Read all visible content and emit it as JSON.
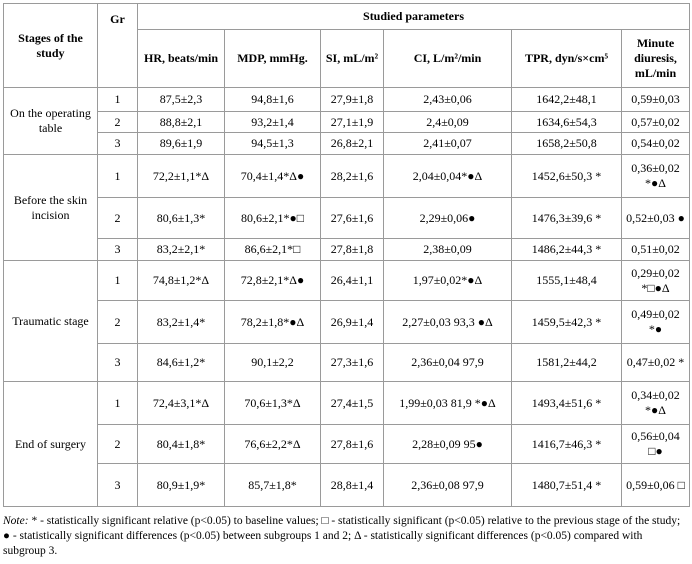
{
  "header": {
    "stages": "Stages of the study",
    "gr": "Gr",
    "studied": "Studied parameters",
    "columns": [
      "HR, beats/min",
      "MDP, mmHg.",
      "SI, mL/m²",
      "CI, L/m²/min",
      "TPR, dyn/s×cm⁵",
      "Minute diuresis, mL/min"
    ]
  },
  "groups": [
    {
      "stage": "On the operating table",
      "rows": [
        {
          "gr": "1",
          "values": [
            "87,5±2,3",
            "94,8±1,6",
            "27,9±1,8",
            "2,43±0,06",
            "1642,2±48,1",
            "0,59±0,03"
          ]
        },
        {
          "gr": "2",
          "values": [
            "88,8±2,1",
            "93,2±1,4",
            "27,1±1,9",
            "2,4±0,09",
            "1634,6±54,3",
            "0,57±0,02"
          ]
        },
        {
          "gr": "3",
          "values": [
            "89,6±1,9",
            "94,5±1,3",
            "26,8±2,1",
            "2,41±0,07",
            "1658,2±50,8",
            "0,54±0,02"
          ]
        }
      ]
    },
    {
      "stage": "Before the skin incision",
      "rows": [
        {
          "gr": "1",
          "values": [
            "72,2±1,1*Δ",
            "70,4±1,4*Δ●",
            "28,2±1,6",
            "2,04±0,04*●Δ",
            "1452,6±50,3 *",
            "0,36±0,02 *●Δ"
          ]
        },
        {
          "gr": "2",
          "values": [
            "80,6±1,3*",
            "80,6±2,1*●□",
            "27,6±1,6",
            "2,29±0,06●",
            "1476,3±39,6 *",
            "0,52±0,03 ●"
          ]
        },
        {
          "gr": "3",
          "values": [
            "83,2±2,1*",
            "86,6±2,1*□",
            "27,8±1,8",
            "2,38±0,09",
            "1486,2±44,3 *",
            "0,51±0,02"
          ]
        }
      ]
    },
    {
      "stage": "Traumatic stage",
      "rows": [
        {
          "gr": "1",
          "values": [
            "74,8±1,2*Δ",
            "72,8±2,1*Δ●",
            "26,4±1,1",
            "1,97±0,02*●Δ",
            "1555,1±48,4",
            "0,29±0,02 *□●Δ"
          ]
        },
        {
          "gr": "2",
          "values": [
            "83,2±1,4*",
            "78,2±1,8*●Δ",
            "26,9±1,4",
            "2,27±0,03 93,3 ●Δ",
            "1459,5±42,3 *",
            "0,49±0,02 *●"
          ]
        },
        {
          "gr": "3",
          "values": [
            "84,6±1,2*",
            "90,1±2,2",
            "27,3±1,6",
            "2,36±0,04 97,9",
            "1581,2±44,2",
            "0,47±0,02 *"
          ]
        }
      ]
    },
    {
      "stage": "End of surgery",
      "rows": [
        {
          "gr": "1",
          "values": [
            "72,4±3,1*Δ",
            "70,6±1,3*Δ",
            "27,4±1,5",
            "1,99±0,03 81,9 *●Δ",
            "1493,4±51,6 *",
            "0,34±0,02 *●Δ"
          ]
        },
        {
          "gr": "2",
          "values": [
            "80,4±1,8*",
            "76,6±2,2*Δ",
            "27,8±1,6",
            "2,28±0,09 95●",
            "1416,7±46,3 *",
            "0,56±0,04 □●"
          ]
        },
        {
          "gr": "3",
          "values": [
            "80,9±1,9*",
            "85,7±1,8*",
            "28,8±1,4",
            "2,36±0,08 97,9",
            "1480,7±51,4 *",
            "0,59±0,06 □"
          ]
        }
      ]
    }
  ],
  "note": {
    "label": "Note:",
    "text": " * - statistically significant relative (p<0.05) to baseline values; □ - statistically significant (p<0.05) relative to the previous stage of the study; ● - statistically significant differences (p<0.05) between subgroups 1 and 2; Δ - statistically significant differences (p<0.05) compared with subgroup 3."
  }
}
